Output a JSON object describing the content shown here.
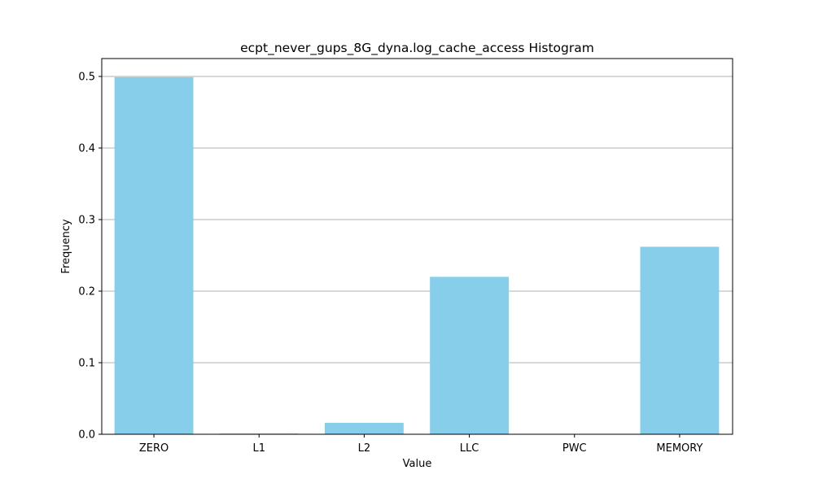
{
  "chart_data": {
    "type": "bar",
    "title": "ecpt_never_gups_8G_dyna.log_cache_access Histogram",
    "xlabel": "Value",
    "ylabel": "Frequency",
    "categories": [
      "ZERO",
      "L1",
      "L2",
      "LLC",
      "PWC",
      "MEMORY"
    ],
    "values": [
      0.499,
      0.001,
      0.016,
      0.22,
      0.0,
      0.262
    ],
    "ylim": [
      0,
      0.525
    ],
    "yticks": [
      0.0,
      0.1,
      0.2,
      0.3,
      0.4,
      0.5
    ],
    "ytick_labels": [
      "0.0",
      "0.1",
      "0.2",
      "0.3",
      "0.4",
      "0.5"
    ],
    "grid": "horizontal",
    "bar_color": "#87CEEB",
    "gridline_color": "#b0b0b0"
  }
}
